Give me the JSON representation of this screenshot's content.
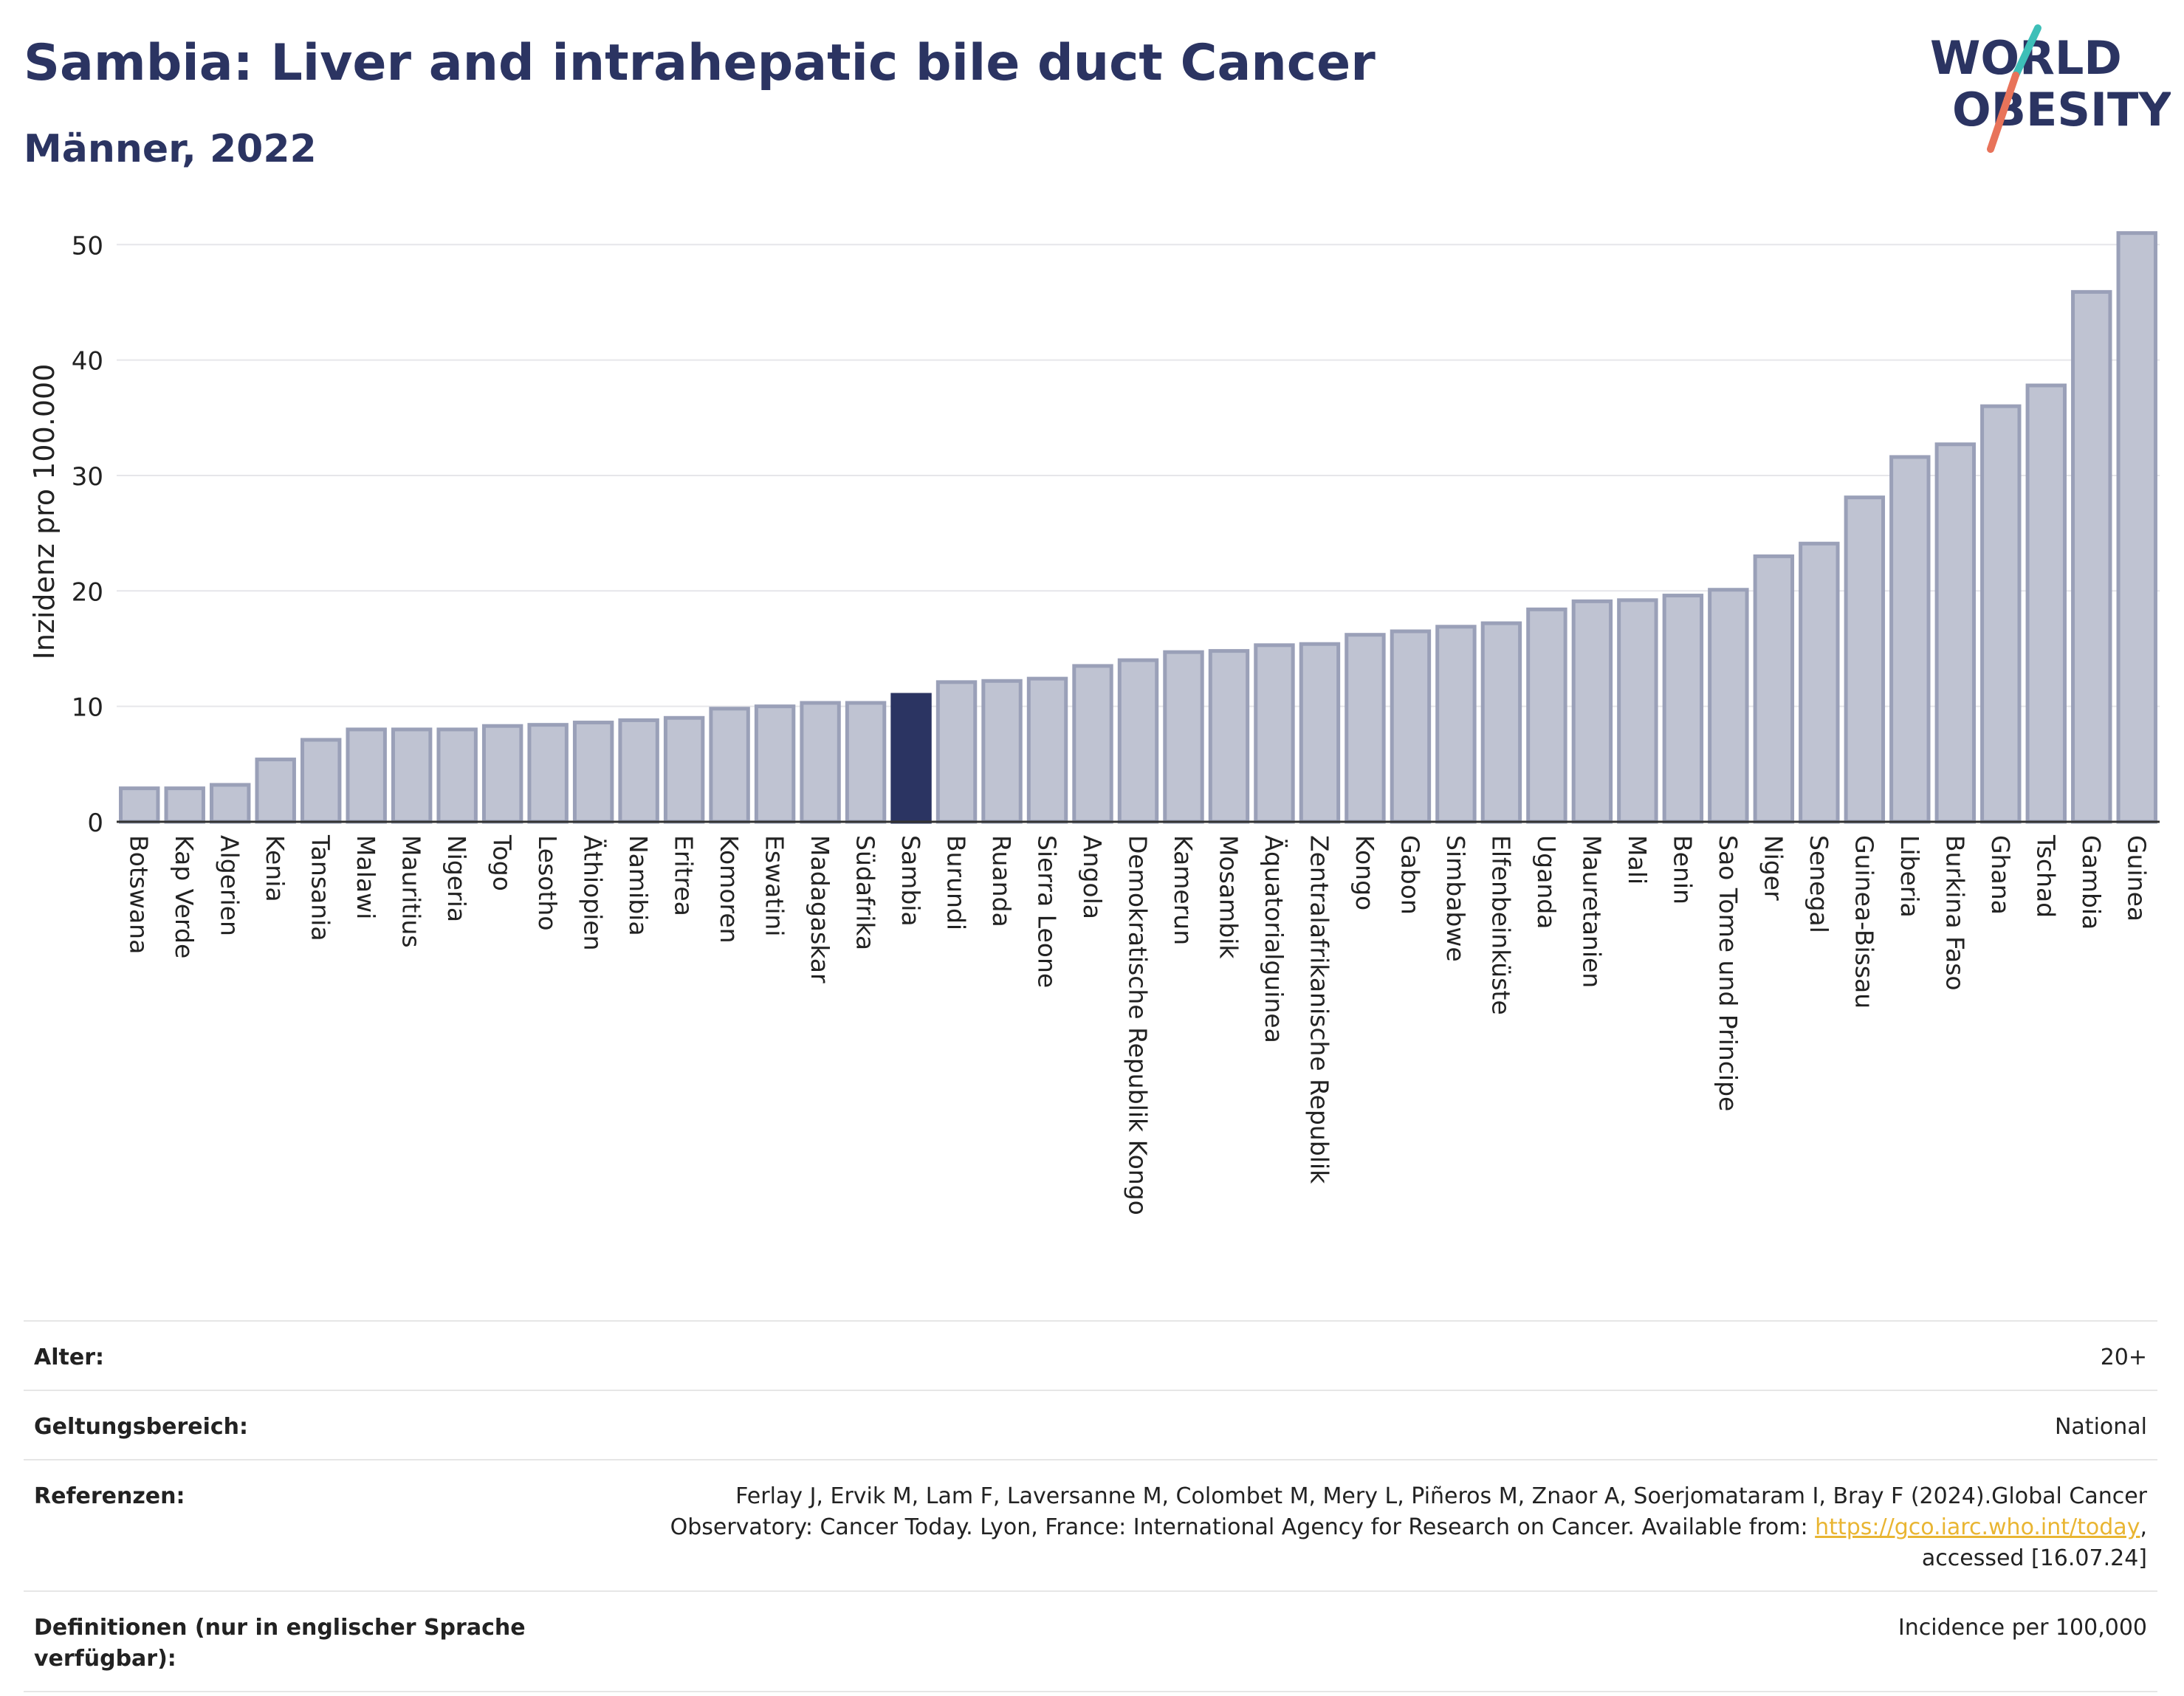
{
  "header": {
    "title": "Sambia: Liver and intrahepatic bile duct Cancer",
    "subtitle": "Männer, 2022"
  },
  "logo": {
    "line1": "WORLD",
    "line2": "OBESITY",
    "text_color": "#2b3462",
    "slash_top_color": "#3dbfb8",
    "slash_bottom_color": "#e8735a"
  },
  "chart_data": {
    "type": "bar",
    "ylabel": "Inzidenz pro 100.000",
    "ylim": [
      0,
      52
    ],
    "yticks": [
      0,
      10,
      20,
      30,
      40,
      50
    ],
    "grid": true,
    "highlight": "Sambia",
    "bar_color": "#bfc3d2",
    "bar_edge_color": "#9aa0b8",
    "highlight_color": "#2b3462",
    "categories": [
      "Botswana",
      "Kap Verde",
      "Algerien",
      "Kenia",
      "Tansania",
      "Malawi",
      "Mauritius",
      "Nigeria",
      "Togo",
      "Lesotho",
      "Äthiopien",
      "Namibia",
      "Eritrea",
      "Komoren",
      "Eswatini",
      "Madagaskar",
      "Südafrika",
      "Sambia",
      "Burundi",
      "Ruanda",
      "Sierra Leone",
      "Angola",
      "Demokratische Republik Kongo",
      "Kamerun",
      "Mosambik",
      "Äquatorialguinea",
      "Zentralafrikanische Republik",
      "Kongo",
      "Gabon",
      "Simbabwe",
      "Elfenbeinküste",
      "Uganda",
      "Mauretanien",
      "Mali",
      "Benin",
      "Sao Tome und Principe",
      "Niger",
      "Senegal",
      "Guinea-Bissau",
      "Liberia",
      "Burkina Faso",
      "Ghana",
      "Tschad",
      "Gambia",
      "Guinea"
    ],
    "values": [
      2.9,
      2.9,
      3.2,
      5.4,
      7.1,
      8.0,
      8.0,
      8.0,
      8.3,
      8.4,
      8.6,
      8.8,
      9.0,
      9.8,
      10.0,
      10.3,
      10.3,
      11.0,
      12.1,
      12.2,
      12.4,
      13.5,
      14.0,
      14.7,
      14.8,
      15.3,
      15.4,
      16.2,
      16.5,
      16.9,
      17.2,
      18.4,
      19.1,
      19.2,
      19.6,
      20.1,
      23.0,
      24.1,
      28.1,
      31.6,
      32.7,
      36.0,
      37.8,
      45.9,
      51.0
    ]
  },
  "info": {
    "age_label": "Alter:",
    "age_value": "20+",
    "scope_label": "Geltungsbereich:",
    "scope_value": "National",
    "refs_label": "Referenzen:",
    "refs_line1": "Ferlay J, Ervik M, Lam F, Laversanne M, Colombet M, Mery L, Piñeros M, Znaor A, Soerjomataram I, Bray F (2024).Global Cancer",
    "refs_line2_pre": "Observatory: Cancer Today. Lyon, France: International Agency for Research on Cancer. Available from: ",
    "refs_link": "https://gco.iarc.who.int/today",
    "refs_line2_post": ",",
    "refs_line3": "accessed [16.07.24]",
    "defs_label": "Definitionen (nur in englischer Sprache verfügbar):",
    "defs_value": "Incidence per 100,000"
  }
}
